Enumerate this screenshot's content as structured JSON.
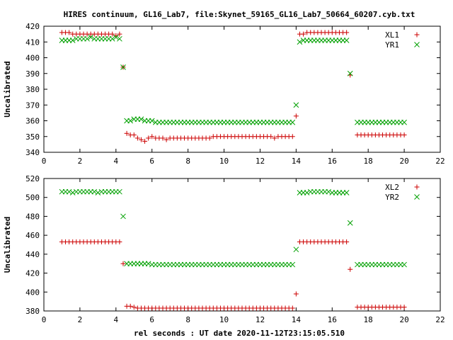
{
  "title": "HIRES continuum, GL16_Lab7, file:Skynet_59165_GL16_Lab7_50664_60207.cyb.txt",
  "xlabel": "rel seconds : UT date 2020-11-12T23:15:05.510",
  "colors": {
    "series1": "#cc0000",
    "series2": "#00a000",
    "axis": "#000000"
  },
  "chart_data": [
    {
      "type": "scatter",
      "ylabel": "Uncalibrated",
      "xlim": [
        0,
        22
      ],
      "ylim": [
        340,
        420
      ],
      "xticks": [
        0,
        2,
        4,
        6,
        8,
        10,
        12,
        14,
        16,
        18,
        20,
        22
      ],
      "yticks": [
        340,
        350,
        360,
        370,
        380,
        390,
        400,
        410,
        420
      ],
      "legend_position": "top-right",
      "series": [
        {
          "name": "XL1",
          "marker": "plus",
          "color": "#cc0000",
          "x": [
            1.0,
            1.2,
            1.4,
            1.6,
            1.8,
            2.0,
            2.2,
            2.4,
            2.6,
            2.8,
            3.0,
            3.2,
            3.4,
            3.6,
            3.8,
            4.0,
            4.2,
            4.4,
            4.6,
            4.8,
            5.0,
            5.2,
            5.4,
            5.6,
            5.8,
            6.0,
            6.2,
            6.4,
            6.6,
            6.8,
            7.0,
            7.2,
            7.4,
            7.6,
            7.8,
            8.0,
            8.2,
            8.4,
            8.6,
            8.8,
            9.0,
            9.2,
            9.4,
            9.6,
            9.8,
            10.0,
            10.2,
            10.4,
            10.6,
            10.8,
            11.0,
            11.2,
            11.4,
            11.6,
            11.8,
            12.0,
            12.2,
            12.4,
            12.6,
            12.8,
            13.0,
            13.2,
            13.4,
            13.6,
            13.8,
            14.0,
            14.2,
            14.4,
            14.6,
            14.8,
            15.0,
            15.2,
            15.4,
            15.6,
            15.8,
            16.0,
            16.2,
            16.4,
            16.6,
            16.8,
            17.0,
            17.4,
            17.6,
            17.8,
            18.0,
            18.2,
            18.4,
            18.6,
            18.8,
            19.0,
            19.2,
            19.4,
            19.6,
            19.8,
            20.0
          ],
          "y": [
            416,
            416,
            416,
            415,
            415,
            415,
            415,
            415,
            415,
            415,
            415,
            415,
            415,
            415,
            415,
            414,
            415,
            394,
            352,
            351,
            351,
            349,
            348,
            347,
            349,
            350,
            349,
            349,
            349,
            348,
            349,
            349,
            349,
            349,
            349,
            349,
            349,
            349,
            349,
            349,
            349,
            349,
            350,
            350,
            350,
            350,
            350,
            350,
            350,
            350,
            350,
            350,
            350,
            350,
            350,
            350,
            350,
            350,
            350,
            349,
            350,
            350,
            350,
            350,
            350,
            363,
            415,
            415,
            416,
            416,
            416,
            416,
            416,
            416,
            416,
            416,
            416,
            416,
            416,
            416,
            389,
            351,
            351,
            351,
            351,
            351,
            351,
            351,
            351,
            351,
            351,
            351,
            351,
            351,
            351
          ]
        },
        {
          "name": "YR1",
          "marker": "cross",
          "color": "#00a000",
          "x": [
            1.0,
            1.2,
            1.4,
            1.6,
            1.8,
            2.0,
            2.2,
            2.4,
            2.6,
            2.8,
            3.0,
            3.2,
            3.4,
            3.6,
            3.8,
            4.0,
            4.2,
            4.4,
            4.6,
            4.8,
            5.0,
            5.2,
            5.4,
            5.6,
            5.8,
            6.0,
            6.2,
            6.4,
            6.6,
            6.8,
            7.0,
            7.2,
            7.4,
            7.6,
            7.8,
            8.0,
            8.2,
            8.4,
            8.6,
            8.8,
            9.0,
            9.2,
            9.4,
            9.6,
            9.8,
            10.0,
            10.2,
            10.4,
            10.6,
            10.8,
            11.0,
            11.2,
            11.4,
            11.6,
            11.8,
            12.0,
            12.2,
            12.4,
            12.6,
            12.8,
            13.0,
            13.2,
            13.4,
            13.6,
            13.8,
            14.0,
            14.2,
            14.4,
            14.6,
            14.8,
            15.0,
            15.2,
            15.4,
            15.6,
            15.8,
            16.0,
            16.2,
            16.4,
            16.6,
            16.8,
            17.0,
            17.4,
            17.6,
            17.8,
            18.0,
            18.2,
            18.4,
            18.6,
            18.8,
            19.0,
            19.2,
            19.4,
            19.6,
            19.8,
            20.0
          ],
          "y": [
            411,
            411,
            411,
            411,
            412,
            412,
            412,
            412,
            413,
            412,
            412,
            412,
            412,
            412,
            412,
            413,
            412,
            394,
            360,
            360,
            361,
            361,
            361,
            360,
            360,
            360,
            359,
            359,
            359,
            359,
            359,
            359,
            359,
            359,
            359,
            359,
            359,
            359,
            359,
            359,
            359,
            359,
            359,
            359,
            359,
            359,
            359,
            359,
            359,
            359,
            359,
            359,
            359,
            359,
            359,
            359,
            359,
            359,
            359,
            359,
            359,
            359,
            359,
            359,
            359,
            370,
            410,
            411,
            411,
            411,
            411,
            411,
            411,
            411,
            411,
            411,
            411,
            411,
            411,
            411,
            390,
            359,
            359,
            359,
            359,
            359,
            359,
            359,
            359,
            359,
            359,
            359,
            359,
            359,
            359
          ]
        }
      ]
    },
    {
      "type": "scatter",
      "ylabel": "Uncalibrated",
      "xlim": [
        0,
        22
      ],
      "ylim": [
        380,
        520
      ],
      "xticks": [
        0,
        2,
        4,
        6,
        8,
        10,
        12,
        14,
        16,
        18,
        20,
        22
      ],
      "yticks": [
        380,
        400,
        420,
        440,
        460,
        480,
        500,
        520
      ],
      "legend_position": "top-right",
      "series": [
        {
          "name": "XL2",
          "marker": "plus",
          "color": "#cc0000",
          "x": [
            1.0,
            1.2,
            1.4,
            1.6,
            1.8,
            2.0,
            2.2,
            2.4,
            2.6,
            2.8,
            3.0,
            3.2,
            3.4,
            3.6,
            3.8,
            4.0,
            4.2,
            4.4,
            4.6,
            4.8,
            5.0,
            5.2,
            5.4,
            5.6,
            5.8,
            6.0,
            6.2,
            6.4,
            6.6,
            6.8,
            7.0,
            7.2,
            7.4,
            7.6,
            7.8,
            8.0,
            8.2,
            8.4,
            8.6,
            8.8,
            9.0,
            9.2,
            9.4,
            9.6,
            9.8,
            10.0,
            10.2,
            10.4,
            10.6,
            10.8,
            11.0,
            11.2,
            11.4,
            11.6,
            11.8,
            12.0,
            12.2,
            12.4,
            12.6,
            12.8,
            13.0,
            13.2,
            13.4,
            13.6,
            13.8,
            14.0,
            14.2,
            14.4,
            14.6,
            14.8,
            15.0,
            15.2,
            15.4,
            15.6,
            15.8,
            16.0,
            16.2,
            16.4,
            16.6,
            16.8,
            17.0,
            17.4,
            17.6,
            17.8,
            18.0,
            18.2,
            18.4,
            18.6,
            18.8,
            19.0,
            19.2,
            19.4,
            19.6,
            19.8,
            20.0
          ],
          "y": [
            453,
            453,
            453,
            453,
            453,
            453,
            453,
            453,
            453,
            453,
            453,
            453,
            453,
            453,
            453,
            453,
            453,
            430,
            385,
            385,
            384,
            383,
            383,
            383,
            383,
            383,
            383,
            383,
            383,
            383,
            383,
            383,
            383,
            383,
            383,
            383,
            383,
            383,
            383,
            383,
            383,
            383,
            383,
            383,
            383,
            383,
            383,
            383,
            383,
            383,
            383,
            383,
            383,
            383,
            383,
            383,
            383,
            383,
            383,
            383,
            383,
            383,
            383,
            383,
            383,
            398,
            453,
            453,
            453,
            453,
            453,
            453,
            453,
            453,
            453,
            453,
            453,
            453,
            453,
            453,
            424,
            384,
            384,
            384,
            384,
            384,
            384,
            384,
            384,
            384,
            384,
            384,
            384,
            384,
            384
          ]
        },
        {
          "name": "YR2",
          "marker": "cross",
          "color": "#00a000",
          "x": [
            1.0,
            1.2,
            1.4,
            1.6,
            1.8,
            2.0,
            2.2,
            2.4,
            2.6,
            2.8,
            3.0,
            3.2,
            3.4,
            3.6,
            3.8,
            4.0,
            4.2,
            4.4,
            4.6,
            4.8,
            5.0,
            5.2,
            5.4,
            5.6,
            5.8,
            6.0,
            6.2,
            6.4,
            6.6,
            6.8,
            7.0,
            7.2,
            7.4,
            7.6,
            7.8,
            8.0,
            8.2,
            8.4,
            8.6,
            8.8,
            9.0,
            9.2,
            9.4,
            9.6,
            9.8,
            10.0,
            10.2,
            10.4,
            10.6,
            10.8,
            11.0,
            11.2,
            11.4,
            11.6,
            11.8,
            12.0,
            12.2,
            12.4,
            12.6,
            12.8,
            13.0,
            13.2,
            13.4,
            13.6,
            13.8,
            14.0,
            14.2,
            14.4,
            14.6,
            14.8,
            15.0,
            15.2,
            15.4,
            15.6,
            15.8,
            16.0,
            16.2,
            16.4,
            16.6,
            16.8,
            17.0,
            17.4,
            17.6,
            17.8,
            18.0,
            18.2,
            18.4,
            18.6,
            18.8,
            19.0,
            19.2,
            19.4,
            19.6,
            19.8,
            20.0
          ],
          "y": [
            506,
            506,
            506,
            505,
            506,
            506,
            506,
            506,
            506,
            506,
            505,
            506,
            506,
            506,
            506,
            506,
            506,
            480,
            430,
            430,
            430,
            430,
            430,
            430,
            430,
            429,
            429,
            429,
            429,
            429,
            429,
            429,
            429,
            429,
            429,
            429,
            429,
            429,
            429,
            429,
            429,
            429,
            429,
            429,
            429,
            429,
            429,
            429,
            429,
            429,
            429,
            429,
            429,
            429,
            429,
            429,
            429,
            429,
            429,
            429,
            429,
            429,
            429,
            429,
            429,
            445,
            505,
            505,
            505,
            506,
            506,
            506,
            506,
            506,
            506,
            505,
            505,
            505,
            505,
            505,
            473,
            429,
            429,
            429,
            429,
            429,
            429,
            429,
            429,
            429,
            429,
            429,
            429,
            429,
            429
          ]
        }
      ]
    }
  ]
}
